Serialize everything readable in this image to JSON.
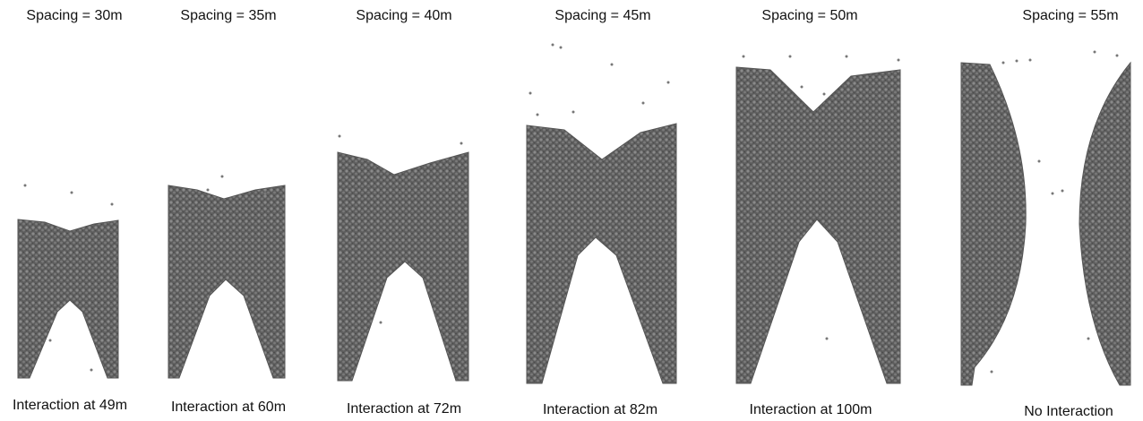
{
  "panels": [
    {
      "title": "Spacing = 30m",
      "caption": "Interaction at 49m"
    },
    {
      "title": "Spacing = 35m",
      "caption": "Interaction at 60m"
    },
    {
      "title": "Spacing = 40m",
      "caption": "Interaction at 72m"
    },
    {
      "title": "Spacing = 45m",
      "caption": "Interaction at 82m"
    },
    {
      "title": "Spacing = 50m",
      "caption": "Interaction at 100m"
    },
    {
      "title": "Spacing = 55m",
      "caption": "No Interaction"
    }
  ]
}
